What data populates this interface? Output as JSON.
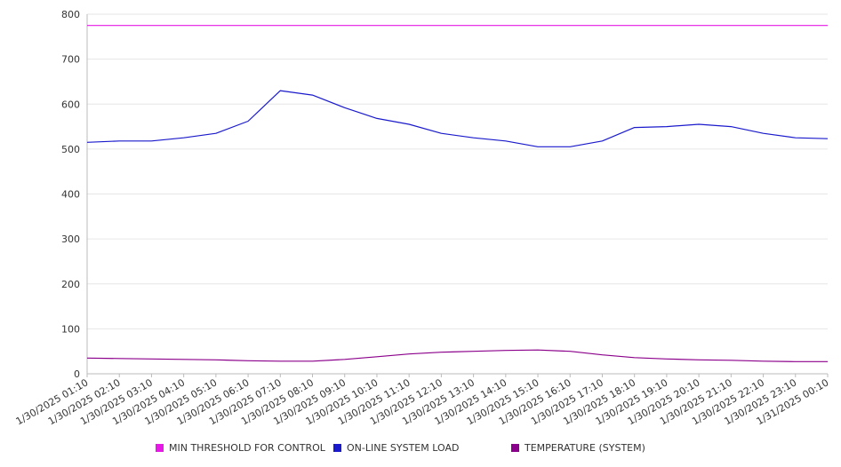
{
  "chart_data": {
    "type": "line",
    "ylim": [
      0,
      800
    ],
    "yticks": [
      0,
      100,
      200,
      300,
      400,
      500,
      600,
      700,
      800
    ],
    "grid": "horizontal",
    "legend_position": "bottom",
    "x": [
      "1/30/2025 01:10",
      "1/30/2025 02:10",
      "1/30/2025 03:10",
      "1/30/2025 04:10",
      "1/30/2025 05:10",
      "1/30/2025 06:10",
      "1/30/2025 07:10",
      "1/30/2025 08:10",
      "1/30/2025 09:10",
      "1/30/2025 10:10",
      "1/30/2025 11:10",
      "1/30/2025 12:10",
      "1/30/2025 13:10",
      "1/30/2025 14:10",
      "1/30/2025 15:10",
      "1/30/2025 16:10",
      "1/30/2025 17:10",
      "1/30/2025 18:10",
      "1/30/2025 19:10",
      "1/30/2025 20:10",
      "1/30/2025 21:10",
      "1/30/2025 22:10",
      "1/30/2025 23:10",
      "1/31/2025 00:10"
    ],
    "series": [
      {
        "name": "MIN THRESHOLD FOR CONTROL",
        "color": "#e619e6",
        "values": [
          775,
          775,
          775,
          775,
          775,
          775,
          775,
          775,
          775,
          775,
          775,
          775,
          775,
          775,
          775,
          775,
          775,
          775,
          775,
          775,
          775,
          775,
          775,
          775
        ]
      },
      {
        "name": "ON-LINE SYSTEM LOAD",
        "color": "#1a1acc",
        "values": [
          515,
          518,
          518,
          525,
          535,
          562,
          630,
          620,
          592,
          568,
          555,
          535,
          525,
          518,
          505,
          505,
          518,
          548,
          550,
          555,
          550,
          535,
          525,
          523
        ]
      },
      {
        "name": "TEMPERATURE (SYSTEM)",
        "color": "#8b008b",
        "values": [
          35,
          34,
          33,
          32,
          31,
          29,
          28,
          28,
          32,
          38,
          44,
          48,
          50,
          52,
          53,
          50,
          42,
          36,
          33,
          31,
          30,
          28,
          27,
          27
        ]
      }
    ]
  }
}
